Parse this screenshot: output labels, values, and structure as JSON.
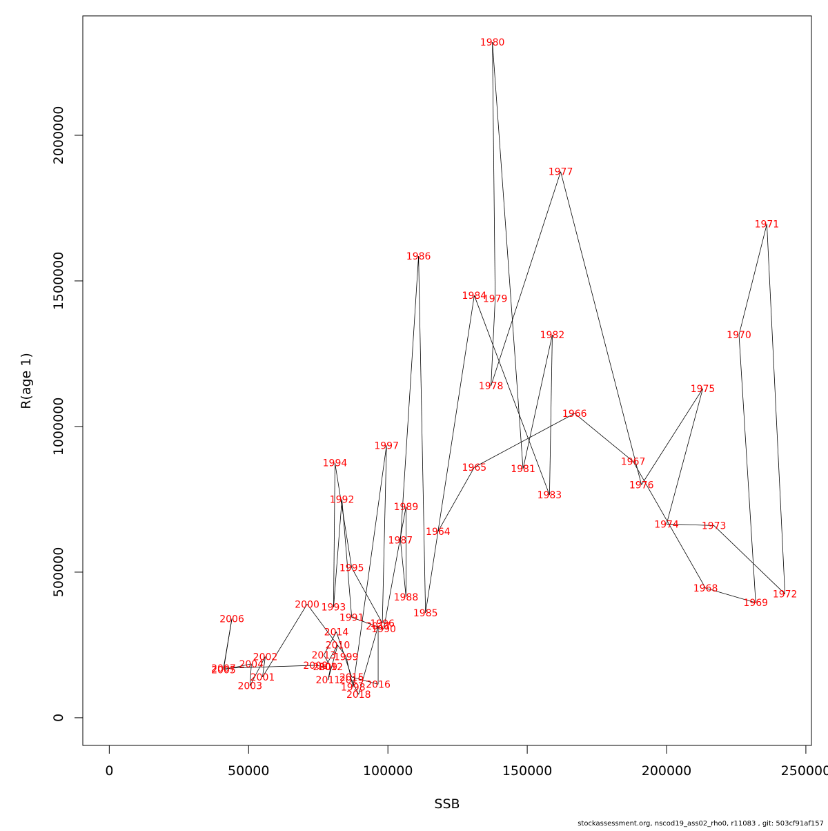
{
  "chart_data": {
    "type": "scatter",
    "connected": true,
    "xlabel": "SSB",
    "ylabel": "R(age 1)",
    "xlim": [
      -9500,
      252000
    ],
    "ylim": [
      -95000,
      2410000
    ],
    "x_ticks": [
      0,
      50000,
      100000,
      150000,
      200000,
      250000
    ],
    "y_ticks": [
      0,
      500000,
      1000000,
      1500000,
      2000000
    ],
    "x_tick_labels": [
      "0",
      "50000",
      "100000",
      "150000",
      "200000",
      "250000"
    ],
    "y_tick_labels": [
      "0",
      "500000",
      "1000000",
      "1500000",
      "2000000"
    ],
    "line_color": "#000000",
    "label_color": "#ff0000",
    "points": [
      {
        "year": "1964",
        "x": 118000,
        "y": 640000
      },
      {
        "year": "1965",
        "x": 131000,
        "y": 860000
      },
      {
        "year": "1966",
        "x": 167000,
        "y": 1045000
      },
      {
        "year": "1967",
        "x": 188000,
        "y": 880000
      },
      {
        "year": "1968",
        "x": 214000,
        "y": 445000
      },
      {
        "year": "1969",
        "x": 232000,
        "y": 395000
      },
      {
        "year": "1970",
        "x": 226000,
        "y": 1315000
      },
      {
        "year": "1971",
        "x": 236000,
        "y": 1695000
      },
      {
        "year": "1972",
        "x": 242500,
        "y": 425000
      },
      {
        "year": "1973",
        "x": 217000,
        "y": 660000
      },
      {
        "year": "1974",
        "x": 200000,
        "y": 665000
      },
      {
        "year": "1975",
        "x": 213000,
        "y": 1130000
      },
      {
        "year": "1976",
        "x": 191000,
        "y": 800000
      },
      {
        "year": "1977",
        "x": 162000,
        "y": 1875000
      },
      {
        "year": "1978",
        "x": 137000,
        "y": 1140000
      },
      {
        "year": "1979",
        "x": 138500,
        "y": 1440000
      },
      {
        "year": "1980",
        "x": 137500,
        "y": 2320000
      },
      {
        "year": "1981",
        "x": 148500,
        "y": 855000
      },
      {
        "year": "1982",
        "x": 159000,
        "y": 1315000
      },
      {
        "year": "1983",
        "x": 158000,
        "y": 765000
      },
      {
        "year": "1984",
        "x": 131000,
        "y": 1450000
      },
      {
        "year": "1985",
        "x": 113500,
        "y": 360000
      },
      {
        "year": "1986",
        "x": 111000,
        "y": 1585000
      },
      {
        "year": "1987",
        "x": 104500,
        "y": 610000
      },
      {
        "year": "1988",
        "x": 106500,
        "y": 415000
      },
      {
        "year": "1989",
        "x": 106500,
        "y": 725000
      },
      {
        "year": "1990",
        "x": 98500,
        "y": 305000
      },
      {
        "year": "1991",
        "x": 87000,
        "y": 345000
      },
      {
        "year": "1992",
        "x": 83500,
        "y": 750000
      },
      {
        "year": "1993",
        "x": 80500,
        "y": 380000
      },
      {
        "year": "1994",
        "x": 81000,
        "y": 875000
      },
      {
        "year": "1995",
        "x": 87000,
        "y": 515000
      },
      {
        "year": "1996",
        "x": 98000,
        "y": 325000
      },
      {
        "year": "1997",
        "x": 99500,
        "y": 935000
      },
      {
        "year": "1998",
        "x": 87500,
        "y": 105000
      },
      {
        "year": "1999",
        "x": 85000,
        "y": 210000
      },
      {
        "year": "2000",
        "x": 71000,
        "y": 390000
      },
      {
        "year": "2001",
        "x": 55000,
        "y": 140000
      },
      {
        "year": "2002",
        "x": 56000,
        "y": 210000
      },
      {
        "year": "2003",
        "x": 50500,
        "y": 110000
      },
      {
        "year": "2004",
        "x": 51000,
        "y": 185000
      },
      {
        "year": "2005",
        "x": 41000,
        "y": 165000
      },
      {
        "year": "2006",
        "x": 44000,
        "y": 340000
      },
      {
        "year": "2007",
        "x": 41000,
        "y": 170000
      },
      {
        "year": "2008",
        "x": 74000,
        "y": 180000
      },
      {
        "year": "2009",
        "x": 77500,
        "y": 175000
      },
      {
        "year": "2010",
        "x": 82000,
        "y": 250000
      },
      {
        "year": "2011",
        "x": 78500,
        "y": 130000
      },
      {
        "year": "2012",
        "x": 79500,
        "y": 175000
      },
      {
        "year": "2013",
        "x": 77000,
        "y": 215000
      },
      {
        "year": "2014",
        "x": 81500,
        "y": 295000
      },
      {
        "year": "2015",
        "x": 87000,
        "y": 140000
      },
      {
        "year": "2016",
        "x": 96500,
        "y": 115000
      },
      {
        "year": "2017",
        "x": 96500,
        "y": 315000
      },
      {
        "year": "2018",
        "x": 89500,
        "y": 80000
      },
      {
        "year": "2019",
        "x": 87000,
        "y": 130000
      }
    ]
  },
  "footer": "stockassessment.org, nscod19_ass02_rho0, r11083 , git: 503cf91af157"
}
